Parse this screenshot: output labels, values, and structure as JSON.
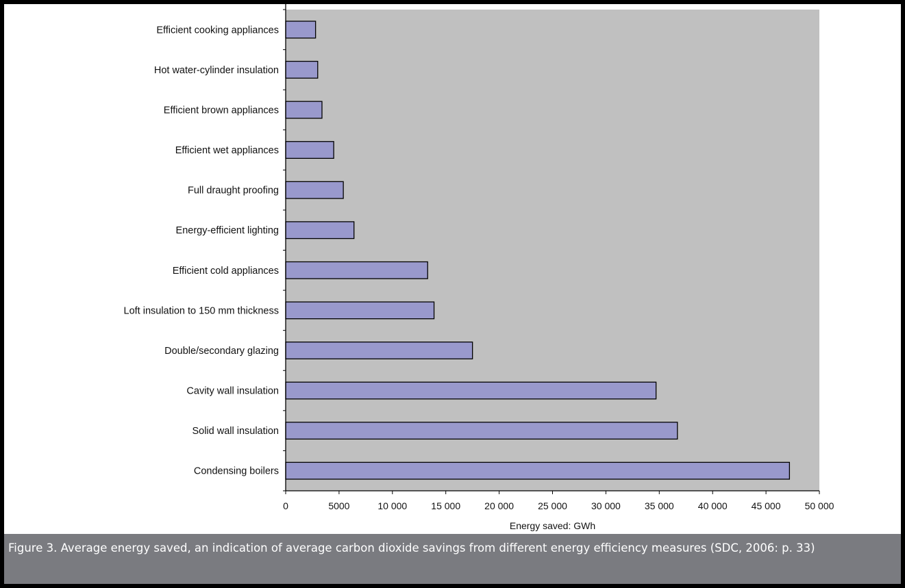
{
  "caption": "Figure 3. Average energy saved, an indication of average carbon dioxide savings from different energy efficiency measures (SDC, 2006: p. 33)",
  "colors": {
    "plot_background": "#c0c0c0",
    "bar_fill": "#9999cc",
    "bar_stroke": "#000000",
    "caption_background": "#7a7b80",
    "frame": "#000000"
  },
  "chart_data": {
    "type": "bar",
    "orientation": "horizontal",
    "categories": [
      "Efficient cooking appliances",
      "Hot water-cylinder insulation",
      "Efficient brown appliances",
      "Efficient wet appliances",
      "Full draught proofing",
      "Energy-efficient lighting",
      "Efficient cold appliances",
      "Loft insulation to 150 mm thickness",
      "Double/secondary glazing",
      "Cavity wall insulation",
      "Solid wall insulation",
      "Condensing boilers"
    ],
    "values": [
      2800,
      3000,
      3400,
      4500,
      5400,
      6400,
      13300,
      13900,
      17500,
      34700,
      36700,
      47200
    ],
    "title": "",
    "xlabel": "Energy saved: GWh",
    "ylabel": "",
    "xlim": [
      0,
      50000
    ],
    "xticks": [
      0,
      5000,
      10000,
      15000,
      20000,
      25000,
      30000,
      35000,
      40000,
      45000,
      50000
    ],
    "xtick_labels": [
      "0",
      "5000",
      "10 000",
      "15 000",
      "20 000",
      "25 000",
      "30 000",
      "35 000",
      "40 000",
      "45 000",
      "50 000"
    ],
    "grid": false,
    "legend": "none"
  }
}
